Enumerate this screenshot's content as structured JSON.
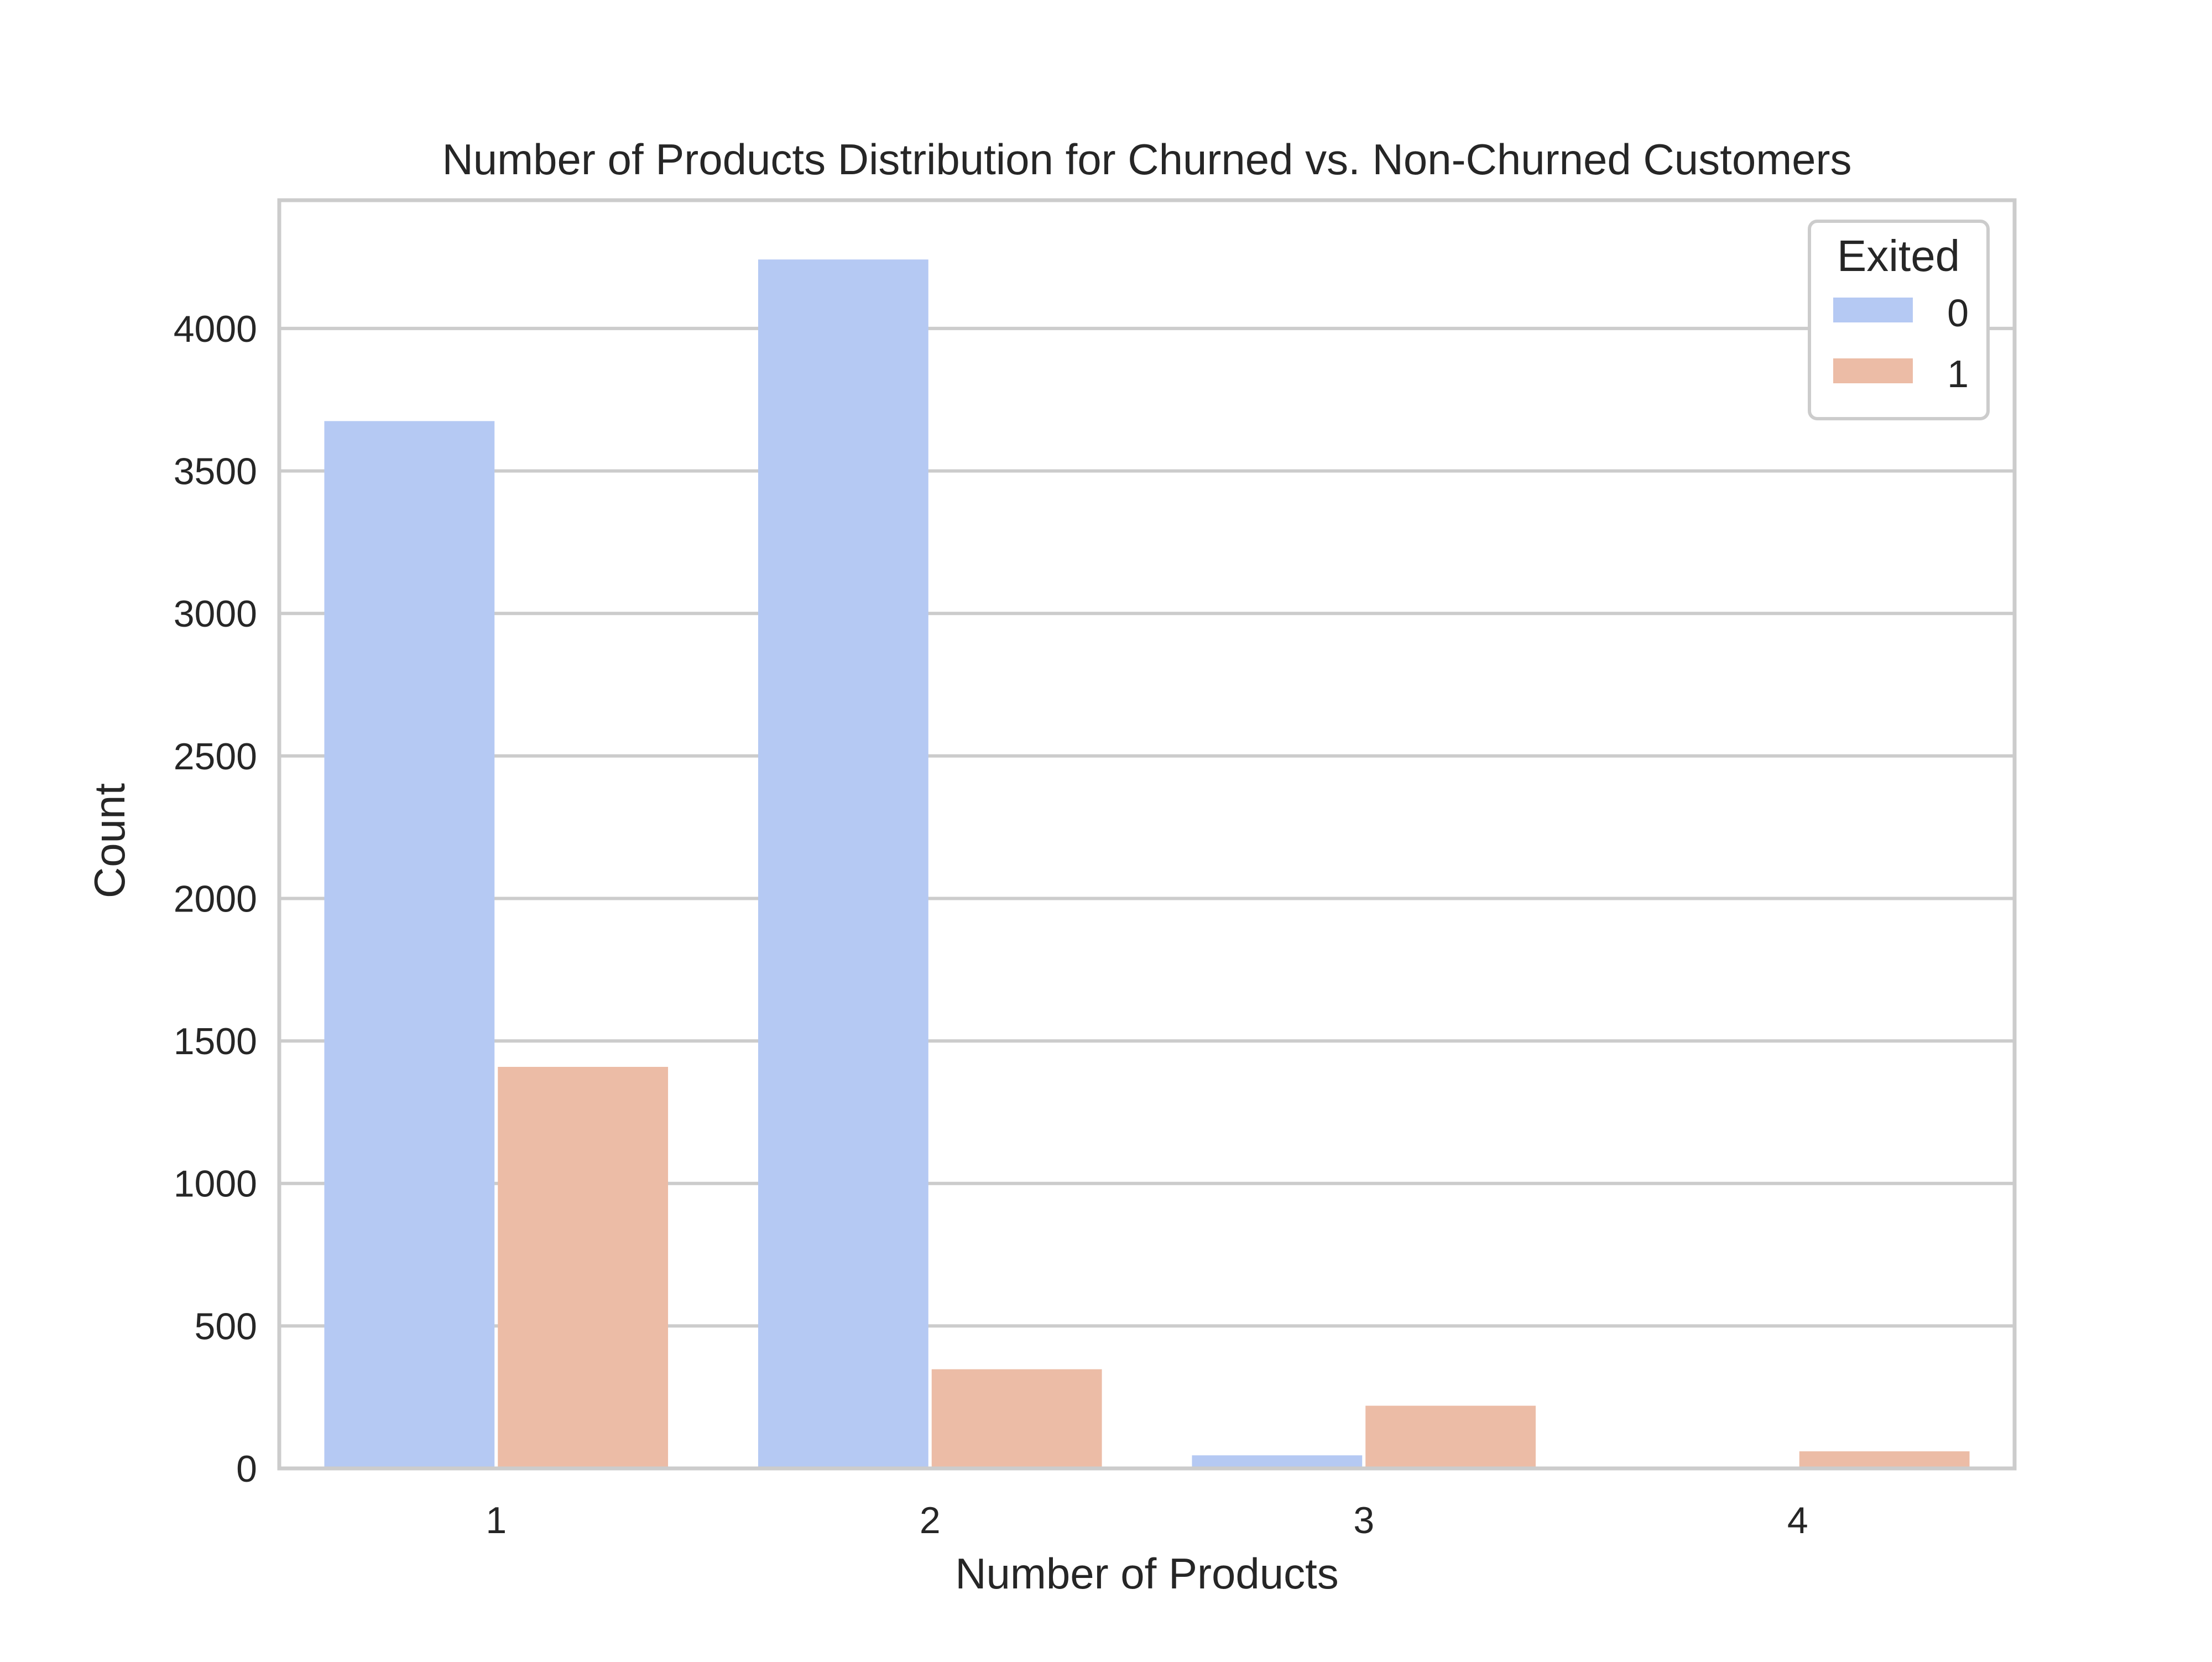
{
  "chart_data": {
    "type": "bar",
    "title": "Number of Products Distribution for Churned vs. Non-Churned Customers",
    "xlabel": "Number of Products",
    "ylabel": "Count",
    "categories": [
      "1",
      "2",
      "3",
      "4"
    ],
    "series": [
      {
        "name": "0",
        "color": "#b5c9f3",
        "values": [
          3675,
          4242,
          46,
          0
        ]
      },
      {
        "name": "1",
        "color": "#ecbca6",
        "values": [
          1409,
          348,
          220,
          60
        ]
      }
    ],
    "ylim": [
      0,
      4450
    ],
    "yticks": [
      0,
      500,
      1000,
      1500,
      2000,
      2500,
      3000,
      3500,
      4000
    ],
    "grid": true,
    "legend": {
      "title": "Exited",
      "placement": "top-right"
    }
  }
}
